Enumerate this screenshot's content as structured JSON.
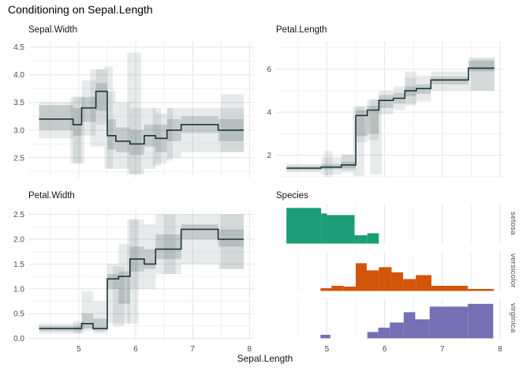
{
  "title": "Conditioning on Sepal.Length",
  "x_axis": {
    "label": "Sepal.Length",
    "ticks": [
      5,
      6,
      7,
      8
    ],
    "tick_labels": [
      "5",
      "6",
      "7",
      "8"
    ],
    "minor_ticks": [
      4.5,
      5.5,
      6.5,
      7.5
    ],
    "domain": [
      4.12,
      8.08
    ]
  },
  "palette": {
    "setosa": "#1B9E77",
    "versicolor": "#D2550A",
    "virginica": "#7570B3",
    "band_outer": "rgba(94,116,112,0.14)",
    "band_inner": "rgba(94,116,112,0.26)",
    "line": "#1E3438",
    "grid_major": "#E3E3E3",
    "grid_minor": "#F0F0F0",
    "tick_text": "#4D4D4D"
  },
  "chart_data": [
    {
      "type": "step-band",
      "title": "Sepal.Width",
      "position": "top-left",
      "xlabel": "Sepal.Length",
      "ylim": [
        2.14,
        4.61
      ],
      "yticks": [
        {
          "v": 2.5,
          "label": "2.5"
        },
        {
          "v": 3.0,
          "label": "3.0"
        },
        {
          "v": 3.5,
          "label": "3.5"
        },
        {
          "v": 4.0,
          "label": "4.0"
        },
        {
          "v": 4.5,
          "label": "4.5"
        }
      ],
      "y_minor": [
        2.25,
        2.75,
        3.25,
        3.75,
        4.25
      ],
      "steps_x0_x1_median_q25_q75_min_max": [
        [
          4.3,
          4.9,
          3.2,
          3.0,
          3.45,
          2.85,
          3.5
        ],
        [
          4.9,
          5.05,
          3.1,
          2.9,
          3.4,
          2.4,
          3.6
        ],
        [
          5.05,
          5.3,
          3.4,
          3.15,
          3.6,
          2.9,
          3.9
        ],
        [
          5.3,
          5.5,
          3.7,
          3.35,
          3.85,
          3.1,
          4.1
        ],
        [
          5.5,
          5.65,
          2.9,
          2.65,
          3.2,
          2.3,
          3.7
        ],
        [
          5.65,
          5.9,
          2.8,
          2.6,
          3.05,
          2.3,
          3.5
        ],
        [
          5.9,
          6.15,
          2.75,
          2.55,
          3.0,
          2.2,
          3.4
        ],
        [
          6.15,
          6.35,
          2.9,
          2.7,
          3.1,
          2.3,
          3.4
        ],
        [
          6.35,
          6.55,
          2.85,
          2.6,
          3.1,
          2.4,
          3.3
        ],
        [
          6.55,
          6.8,
          3.0,
          2.8,
          3.2,
          2.5,
          3.4
        ],
        [
          6.8,
          7.45,
          3.1,
          2.95,
          3.25,
          2.6,
          3.4
        ],
        [
          7.45,
          7.9,
          3.0,
          2.8,
          3.2,
          2.6,
          3.4
        ]
      ],
      "range_columns_x0_x1_y0_y1": [
        [
          4.85,
          5.1,
          2.4,
          3.6
        ],
        [
          5.2,
          5.45,
          2.7,
          4.1
        ],
        [
          5.45,
          5.6,
          2.3,
          4.15
        ],
        [
          5.85,
          6.1,
          2.2,
          4.4
        ],
        [
          6.3,
          6.45,
          2.35,
          3.4
        ],
        [
          6.55,
          6.65,
          2.45,
          3.4
        ],
        [
          7.5,
          7.9,
          2.6,
          3.65
        ]
      ]
    },
    {
      "type": "step-band",
      "title": "Petal.Length",
      "position": "top-right",
      "xlabel": "Sepal.Length",
      "ylim": [
        0.96,
        7.31
      ],
      "yticks": [
        {
          "v": 2,
          "label": "2"
        },
        {
          "v": 4,
          "label": "4"
        },
        {
          "v": 6,
          "label": "6"
        }
      ],
      "y_minor": [
        1,
        3,
        5,
        7
      ],
      "steps_x0_x1_median_q25_q75_min_max": [
        [
          4.3,
          4.9,
          1.4,
          1.3,
          1.5,
          1.2,
          1.6
        ],
        [
          4.9,
          5.25,
          1.45,
          1.35,
          1.6,
          1.1,
          1.9
        ],
        [
          5.25,
          5.5,
          1.55,
          1.4,
          1.7,
          1.3,
          2.0
        ],
        [
          5.5,
          5.7,
          3.85,
          2.9,
          4.1,
          2.6,
          4.3
        ],
        [
          5.7,
          5.9,
          4.1,
          3.0,
          4.3,
          2.7,
          4.6
        ],
        [
          5.9,
          6.15,
          4.55,
          4.2,
          4.8,
          3.9,
          5.0
        ],
        [
          6.15,
          6.35,
          4.65,
          4.4,
          4.9,
          4.1,
          5.2
        ],
        [
          6.35,
          6.55,
          5.0,
          4.75,
          5.2,
          4.4,
          5.6
        ],
        [
          6.55,
          6.8,
          5.1,
          4.85,
          5.3,
          4.5,
          5.7
        ],
        [
          6.8,
          7.45,
          5.5,
          5.3,
          5.65,
          5.0,
          5.9
        ],
        [
          7.45,
          7.9,
          6.05,
          5.9,
          6.4,
          5.0,
          6.55
        ]
      ],
      "range_columns_x0_x1_y0_y1": [
        [
          4.95,
          5.1,
          1.0,
          2.2
        ],
        [
          5.25,
          5.45,
          1.2,
          2.05
        ],
        [
          5.45,
          5.65,
          1.05,
          4.25
        ],
        [
          5.75,
          5.95,
          1.1,
          4.6
        ],
        [
          6.35,
          6.55,
          4.3,
          5.9
        ],
        [
          7.5,
          7.9,
          5.0,
          6.5
        ]
      ]
    },
    {
      "type": "step-band",
      "title": "Petal.Width",
      "position": "bottom-left",
      "xlabel": "Sepal.Length",
      "ylim": [
        -0.03,
        2.605
      ],
      "yticks": [
        {
          "v": 0.0,
          "label": "0.0"
        },
        {
          "v": 0.5,
          "label": "0.5"
        },
        {
          "v": 1.0,
          "label": "1.0"
        },
        {
          "v": 1.5,
          "label": "1.5"
        },
        {
          "v": 2.0,
          "label": "2.0"
        },
        {
          "v": 2.5,
          "label": "2.5"
        }
      ],
      "y_minor": [
        0.25,
        0.75,
        1.25,
        1.75,
        2.25
      ],
      "steps_x0_x1_median_q25_q75_min_max": [
        [
          4.3,
          5.05,
          0.2,
          0.15,
          0.25,
          0.1,
          0.3
        ],
        [
          5.05,
          5.25,
          0.3,
          0.2,
          0.5,
          0.15,
          0.95
        ],
        [
          5.25,
          5.5,
          0.2,
          0.15,
          0.4,
          0.1,
          0.75
        ],
        [
          5.5,
          5.7,
          1.2,
          1.0,
          1.3,
          0.3,
          1.5
        ],
        [
          5.7,
          5.9,
          1.25,
          0.7,
          1.35,
          0.3,
          1.9
        ],
        [
          5.9,
          6.15,
          1.6,
          1.35,
          1.85,
          1.0,
          2.4
        ],
        [
          6.15,
          6.35,
          1.5,
          1.4,
          1.8,
          1.0,
          2.3
        ],
        [
          6.35,
          6.8,
          1.8,
          1.6,
          2.1,
          1.3,
          2.5
        ],
        [
          6.8,
          7.45,
          2.2,
          2.0,
          2.3,
          1.5,
          2.5
        ],
        [
          7.45,
          7.9,
          2.0,
          1.85,
          2.2,
          1.4,
          2.5
        ]
      ],
      "range_columns_x0_x1_y0_y1": [
        [
          4.9,
          5.1,
          0.1,
          0.35
        ],
        [
          5.6,
          5.8,
          0.25,
          1.45
        ],
        [
          5.85,
          6.05,
          0.3,
          2.4
        ],
        [
          6.5,
          6.7,
          1.3,
          2.5
        ],
        [
          7.5,
          7.9,
          1.4,
          2.5
        ]
      ]
    },
    {
      "type": "histogram",
      "title": "Species",
      "position": "bottom-right",
      "xlabel": "Sepal.Length",
      "facets": [
        {
          "label": "setosa",
          "color": "#1B9E77",
          "bins_x0_x1_heightfrac": [
            [
              4.3,
              4.9,
              0.9
            ],
            [
              4.9,
              5.0,
              0.76
            ],
            [
              5.0,
              5.48,
              0.72
            ],
            [
              5.48,
              5.7,
              0.21
            ],
            [
              5.7,
              5.9,
              0.26
            ]
          ]
        },
        {
          "label": "versicolor",
          "color": "#D2550A",
          "bins_x0_x1_heightfrac": [
            [
              4.89,
              5.08,
              0.07
            ],
            [
              5.08,
              5.29,
              0.13
            ],
            [
              5.29,
              5.5,
              0.11
            ],
            [
              5.5,
              5.69,
              0.7
            ],
            [
              5.69,
              5.9,
              0.52
            ],
            [
              5.9,
              6.12,
              0.6
            ],
            [
              6.12,
              6.32,
              0.47
            ],
            [
              6.32,
              6.54,
              0.3
            ],
            [
              6.54,
              6.81,
              0.4
            ],
            [
              6.81,
              7.44,
              0.13
            ],
            [
              7.44,
              7.89,
              0.05
            ]
          ]
        },
        {
          "label": "virginica",
          "color": "#7570B3",
          "bins_x0_x1_heightfrac": [
            [
              4.89,
              5.06,
              0.09
            ],
            [
              5.7,
              5.89,
              0.16
            ],
            [
              5.89,
              6.09,
              0.27
            ],
            [
              6.09,
              6.33,
              0.4
            ],
            [
              6.33,
              6.53,
              0.66
            ],
            [
              6.53,
              6.78,
              0.48
            ],
            [
              6.78,
              7.44,
              0.8
            ],
            [
              7.44,
              7.88,
              0.87
            ]
          ]
        }
      ]
    }
  ]
}
